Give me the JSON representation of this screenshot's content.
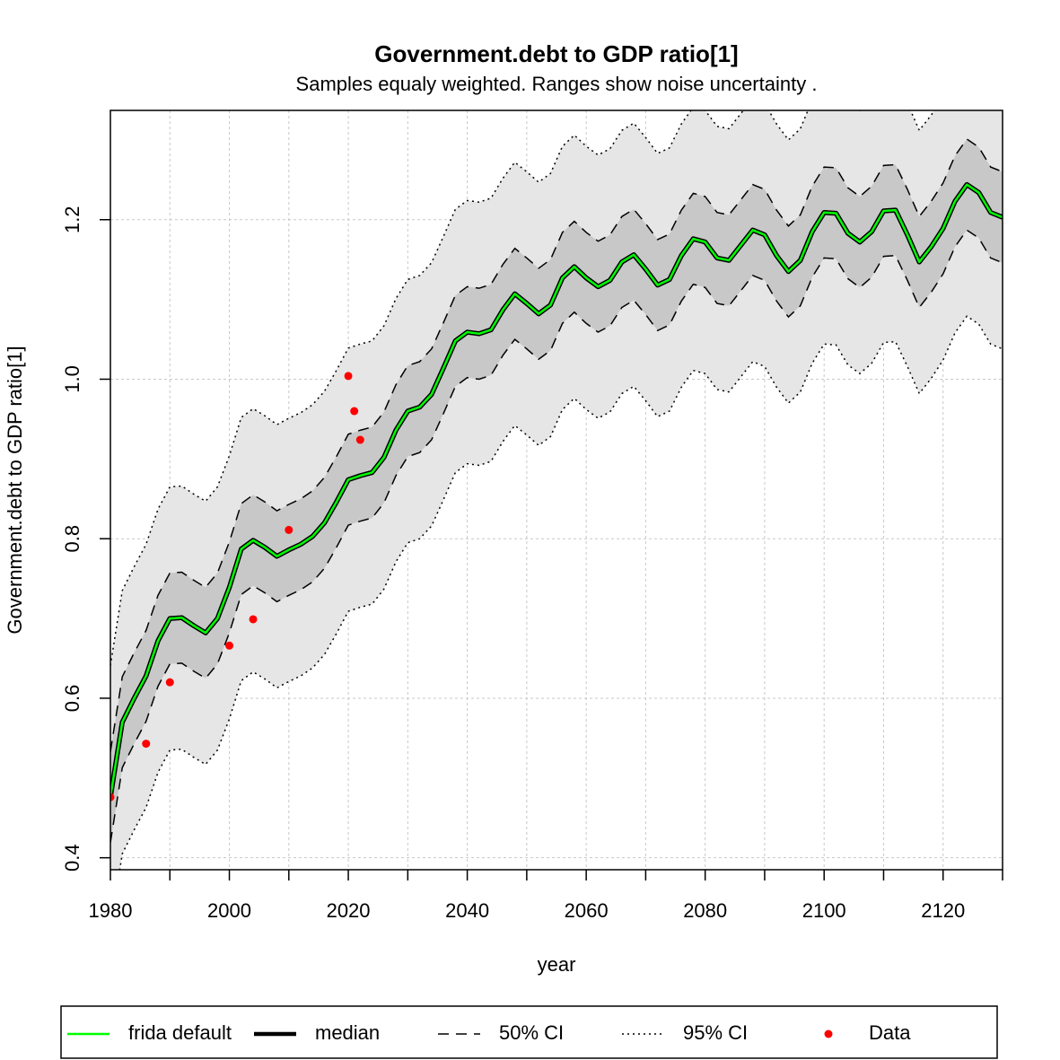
{
  "chart_data": {
    "type": "line",
    "title": "Government.debt to GDP ratio[1]",
    "subtitle": "Samples equaly weighted. Ranges show  noise uncertainty .",
    "x_label": "year",
    "y_label": "Government.debt to GDP ratio[1]",
    "xlim": [
      1980,
      2130
    ],
    "ylim": [
      0.385,
      1.337
    ],
    "xticks": [
      1980,
      2000,
      2020,
      2040,
      2060,
      2080,
      2100,
      2120
    ],
    "xticks_minor": [
      1990,
      2010,
      2030,
      2050,
      2070,
      2090,
      2110,
      2130
    ],
    "yticks": [
      0.4,
      0.6,
      0.8,
      {
        "value": 1,
        "label": "1.0"
      },
      1.2
    ],
    "grid": true,
    "legend": "bottom",
    "x": [
      1980,
      1982,
      1984,
      1986,
      1988,
      1990,
      1992,
      1994,
      1996,
      1998,
      2000,
      2002,
      2004,
      2006,
      2008,
      2010,
      2012,
      2014,
      2016,
      2018,
      2020,
      2022,
      2024,
      2026,
      2028,
      2030,
      2032,
      2034,
      2036,
      2038,
      2040,
      2042,
      2044,
      2046,
      2048,
      2050,
      2052,
      2054,
      2056,
      2058,
      2060,
      2062,
      2064,
      2066,
      2068,
      2070,
      2072,
      2074,
      2076,
      2078,
      2080,
      2082,
      2084,
      2086,
      2088,
      2090,
      2092,
      2094,
      2096,
      2098,
      2100,
      2102,
      2104,
      2106,
      2108,
      2110,
      2112,
      2114,
      2116,
      2118,
      2120,
      2122,
      2124,
      2126,
      2128,
      2130
    ],
    "bands": [
      {
        "name": "95% CI",
        "fill": "#e6e6e6",
        "color": "#000000",
        "dash": "dotted",
        "upper": [
          0.641,
          0.735,
          0.765,
          0.793,
          0.837,
          0.865,
          0.866,
          0.856,
          0.847,
          0.865,
          0.904,
          0.952,
          0.963,
          0.954,
          0.943,
          0.951,
          0.958,
          0.968,
          0.985,
          1.011,
          1.039,
          1.044,
          1.048,
          1.067,
          1.101,
          1.125,
          1.13,
          1.146,
          1.179,
          1.213,
          1.224,
          1.222,
          1.227,
          1.252,
          1.272,
          1.26,
          1.247,
          1.258,
          1.292,
          1.306,
          1.292,
          1.281,
          1.289,
          1.312,
          1.321,
          1.303,
          1.283,
          1.29,
          1.32,
          1.341,
          1.337,
          1.317,
          1.314,
          1.333,
          1.352,
          1.346,
          1.32,
          1.3,
          1.314,
          1.35,
          1.374,
          1.373,
          1.348,
          1.337,
          1.35,
          1.376,
          1.377,
          1.346,
          1.312,
          1.331,
          1.354,
          1.388,
          1.409,
          1.399,
          1.374,
          1.368
        ],
        "lower": [
          0.311,
          0.405,
          0.435,
          0.463,
          0.507,
          0.535,
          0.536,
          0.526,
          0.517,
          0.535,
          0.574,
          0.622,
          0.633,
          0.624,
          0.613,
          0.621,
          0.628,
          0.638,
          0.655,
          0.681,
          0.709,
          0.714,
          0.718,
          0.737,
          0.771,
          0.795,
          0.8,
          0.816,
          0.849,
          0.883,
          0.894,
          0.892,
          0.897,
          0.922,
          0.942,
          0.93,
          0.917,
          0.928,
          0.962,
          0.976,
          0.962,
          0.951,
          0.959,
          0.982,
          0.991,
          0.973,
          0.953,
          0.96,
          0.99,
          1.011,
          1.007,
          0.987,
          0.984,
          1.003,
          1.022,
          1.016,
          0.99,
          0.97,
          0.984,
          1.02,
          1.044,
          1.043,
          1.018,
          1.007,
          1.02,
          1.046,
          1.047,
          1.016,
          0.982,
          1.001,
          1.024,
          1.058,
          1.079,
          1.069,
          1.044,
          1.038
        ]
      },
      {
        "name": "50% CI",
        "fill": "#c8c8c8",
        "color": "#000000",
        "dash": "dashed",
        "upper": [
          0.533,
          0.627,
          0.657,
          0.685,
          0.729,
          0.757,
          0.758,
          0.748,
          0.739,
          0.757,
          0.796,
          0.844,
          0.855,
          0.846,
          0.835,
          0.843,
          0.85,
          0.86,
          0.877,
          0.903,
          0.931,
          0.936,
          0.94,
          0.959,
          0.993,
          1.017,
          1.022,
          1.038,
          1.071,
          1.105,
          1.116,
          1.114,
          1.119,
          1.144,
          1.164,
          1.152,
          1.139,
          1.15,
          1.184,
          1.198,
          1.184,
          1.173,
          1.181,
          1.204,
          1.213,
          1.195,
          1.175,
          1.182,
          1.212,
          1.233,
          1.229,
          1.209,
          1.206,
          1.225,
          1.244,
          1.238,
          1.212,
          1.192,
          1.206,
          1.242,
          1.266,
          1.265,
          1.24,
          1.229,
          1.242,
          1.268,
          1.269,
          1.238,
          1.204,
          1.223,
          1.246,
          1.28,
          1.301,
          1.291,
          1.266,
          1.26
        ],
        "lower": [
          0.419,
          0.513,
          0.543,
          0.571,
          0.615,
          0.643,
          0.644,
          0.634,
          0.625,
          0.643,
          0.682,
          0.73,
          0.741,
          0.732,
          0.721,
          0.729,
          0.736,
          0.746,
          0.763,
          0.789,
          0.817,
          0.822,
          0.826,
          0.845,
          0.879,
          0.903,
          0.908,
          0.924,
          0.957,
          0.991,
          1.002,
          1.0,
          1.005,
          1.03,
          1.05,
          1.038,
          1.025,
          1.036,
          1.07,
          1.084,
          1.07,
          1.059,
          1.067,
          1.09,
          1.099,
          1.081,
          1.061,
          1.068,
          1.098,
          1.119,
          1.115,
          1.095,
          1.092,
          1.111,
          1.13,
          1.124,
          1.098,
          1.078,
          1.092,
          1.128,
          1.152,
          1.151,
          1.126,
          1.115,
          1.128,
          1.154,
          1.155,
          1.124,
          1.09,
          1.109,
          1.132,
          1.166,
          1.187,
          1.177,
          1.152,
          1.146
        ]
      }
    ],
    "series": [
      {
        "name": "median",
        "color": "#000000",
        "values": [
          0.476,
          0.57,
          0.6,
          0.628,
          0.672,
          0.7,
          0.701,
          0.691,
          0.682,
          0.7,
          0.739,
          0.787,
          0.798,
          0.789,
          0.778,
          0.786,
          0.793,
          0.803,
          0.82,
          0.846,
          0.874,
          0.879,
          0.883,
          0.902,
          0.936,
          0.96,
          0.965,
          0.981,
          1.014,
          1.048,
          1.059,
          1.057,
          1.062,
          1.087,
          1.107,
          1.095,
          1.082,
          1.093,
          1.127,
          1.141,
          1.127,
          1.116,
          1.124,
          1.147,
          1.156,
          1.138,
          1.118,
          1.125,
          1.155,
          1.176,
          1.172,
          1.152,
          1.149,
          1.168,
          1.187,
          1.181,
          1.155,
          1.135,
          1.149,
          1.185,
          1.209,
          1.208,
          1.183,
          1.172,
          1.185,
          1.211,
          1.212,
          1.181,
          1.147,
          1.166,
          1.189,
          1.223,
          1.244,
          1.234,
          1.209,
          1.203
        ]
      },
      {
        "name": "frida default",
        "color": "#00ff00",
        "values": [
          0.476,
          0.57,
          0.6,
          0.628,
          0.672,
          0.7,
          0.701,
          0.691,
          0.682,
          0.7,
          0.739,
          0.787,
          0.798,
          0.789,
          0.778,
          0.786,
          0.793,
          0.803,
          0.82,
          0.846,
          0.874,
          0.879,
          0.883,
          0.902,
          0.936,
          0.96,
          0.965,
          0.981,
          1.014,
          1.048,
          1.059,
          1.057,
          1.062,
          1.087,
          1.107,
          1.095,
          1.082,
          1.093,
          1.127,
          1.141,
          1.127,
          1.116,
          1.124,
          1.147,
          1.156,
          1.138,
          1.118,
          1.125,
          1.155,
          1.176,
          1.172,
          1.152,
          1.149,
          1.168,
          1.187,
          1.181,
          1.155,
          1.135,
          1.149,
          1.185,
          1.209,
          1.208,
          1.183,
          1.172,
          1.185,
          1.211,
          1.212,
          1.181,
          1.147,
          1.166,
          1.189,
          1.223,
          1.244,
          1.234,
          1.209,
          1.203
        ]
      }
    ],
    "points": {
      "name": "Data",
      "color": "#ff0000",
      "x": [
        1980,
        1986,
        1990,
        2000,
        2004,
        2010,
        2020,
        2021,
        2022
      ],
      "values": [
        0.476,
        0.543,
        0.62,
        0.666,
        0.699,
        0.811,
        1.004,
        0.96,
        0.924
      ]
    }
  }
}
